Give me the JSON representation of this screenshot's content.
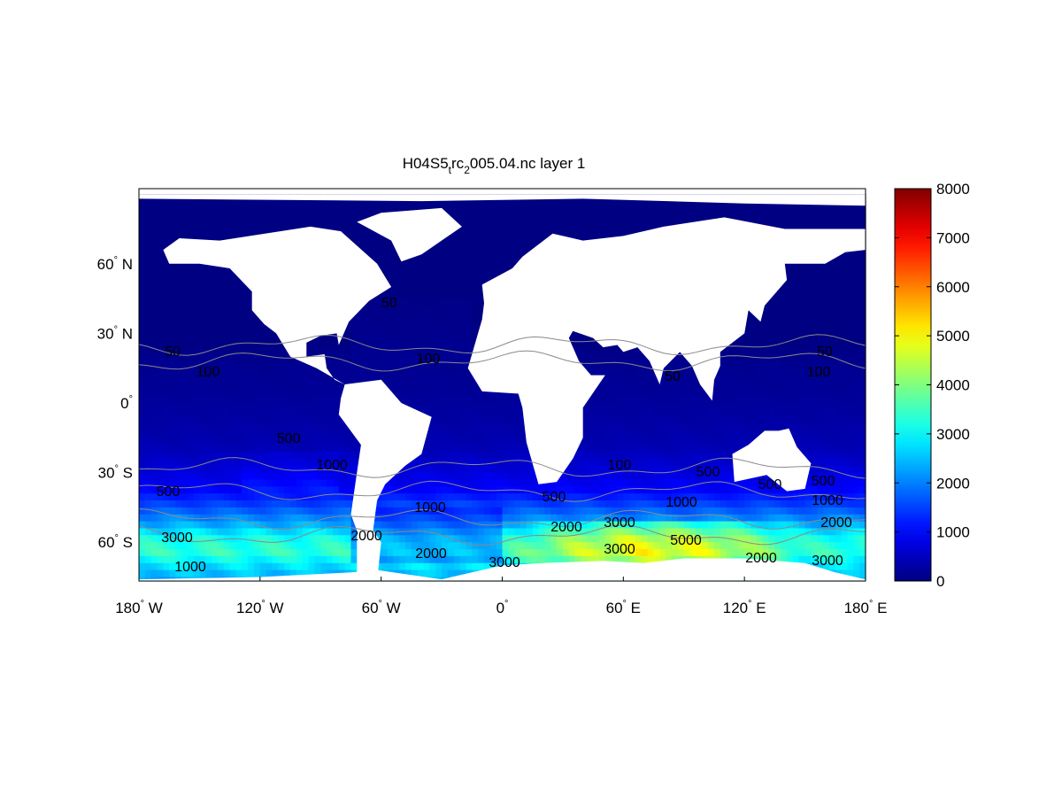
{
  "chart_data": {
    "type": "heatmap",
    "title": {
      "main": "H04S5",
      "sub1": "t",
      "mid": "rc",
      "sub2": "2",
      "rest": "005.04.nc layer 1"
    },
    "projection": "equirectangular",
    "x_ticks": [
      {
        "value": -180,
        "label": "180",
        "hemi": "W"
      },
      {
        "value": -120,
        "label": "120",
        "hemi": "W"
      },
      {
        "value": -60,
        "label": "60",
        "hemi": "W"
      },
      {
        "value": 0,
        "label": "0",
        "hemi": ""
      },
      {
        "value": 60,
        "label": "60",
        "hemi": "E"
      },
      {
        "value": 120,
        "label": "120",
        "hemi": "E"
      },
      {
        "value": 180,
        "label": "180",
        "hemi": "E"
      }
    ],
    "y_ticks": [
      {
        "value": 60,
        "label": "60",
        "hemi": "N"
      },
      {
        "value": 30,
        "label": "30",
        "hemi": "N"
      },
      {
        "value": 0,
        "label": "0",
        "hemi": ""
      },
      {
        "value": -30,
        "label": "30",
        "hemi": "S"
      },
      {
        "value": -60,
        "label": "60",
        "hemi": "S"
      }
    ],
    "xlim": [
      -180,
      180
    ],
    "ylim": [
      -77,
      90
    ],
    "colormap": "jet",
    "colorbar": {
      "range": [
        0,
        8000
      ],
      "ticks": [
        "0",
        "1000",
        "2000",
        "3000",
        "4000",
        "5000",
        "6000",
        "7000",
        "8000"
      ],
      "placement": "right"
    },
    "land_color": "#ffffff",
    "contour_color": "#8a8a8a",
    "contour_levels": [
      50,
      100,
      500,
      1000,
      2000,
      3000,
      5000
    ],
    "contour_labels": [
      "50",
      "100",
      "50",
      "100",
      "50",
      "50",
      "100",
      "500",
      "1000",
      "500",
      "500",
      "100",
      "500",
      "1000",
      "1000",
      "500",
      "2000",
      "3000",
      "1000",
      "500",
      "1000",
      "2000",
      "3000",
      "2000",
      "2000",
      "3000",
      "3000",
      "5000",
      "3000",
      "2000"
    ]
  }
}
